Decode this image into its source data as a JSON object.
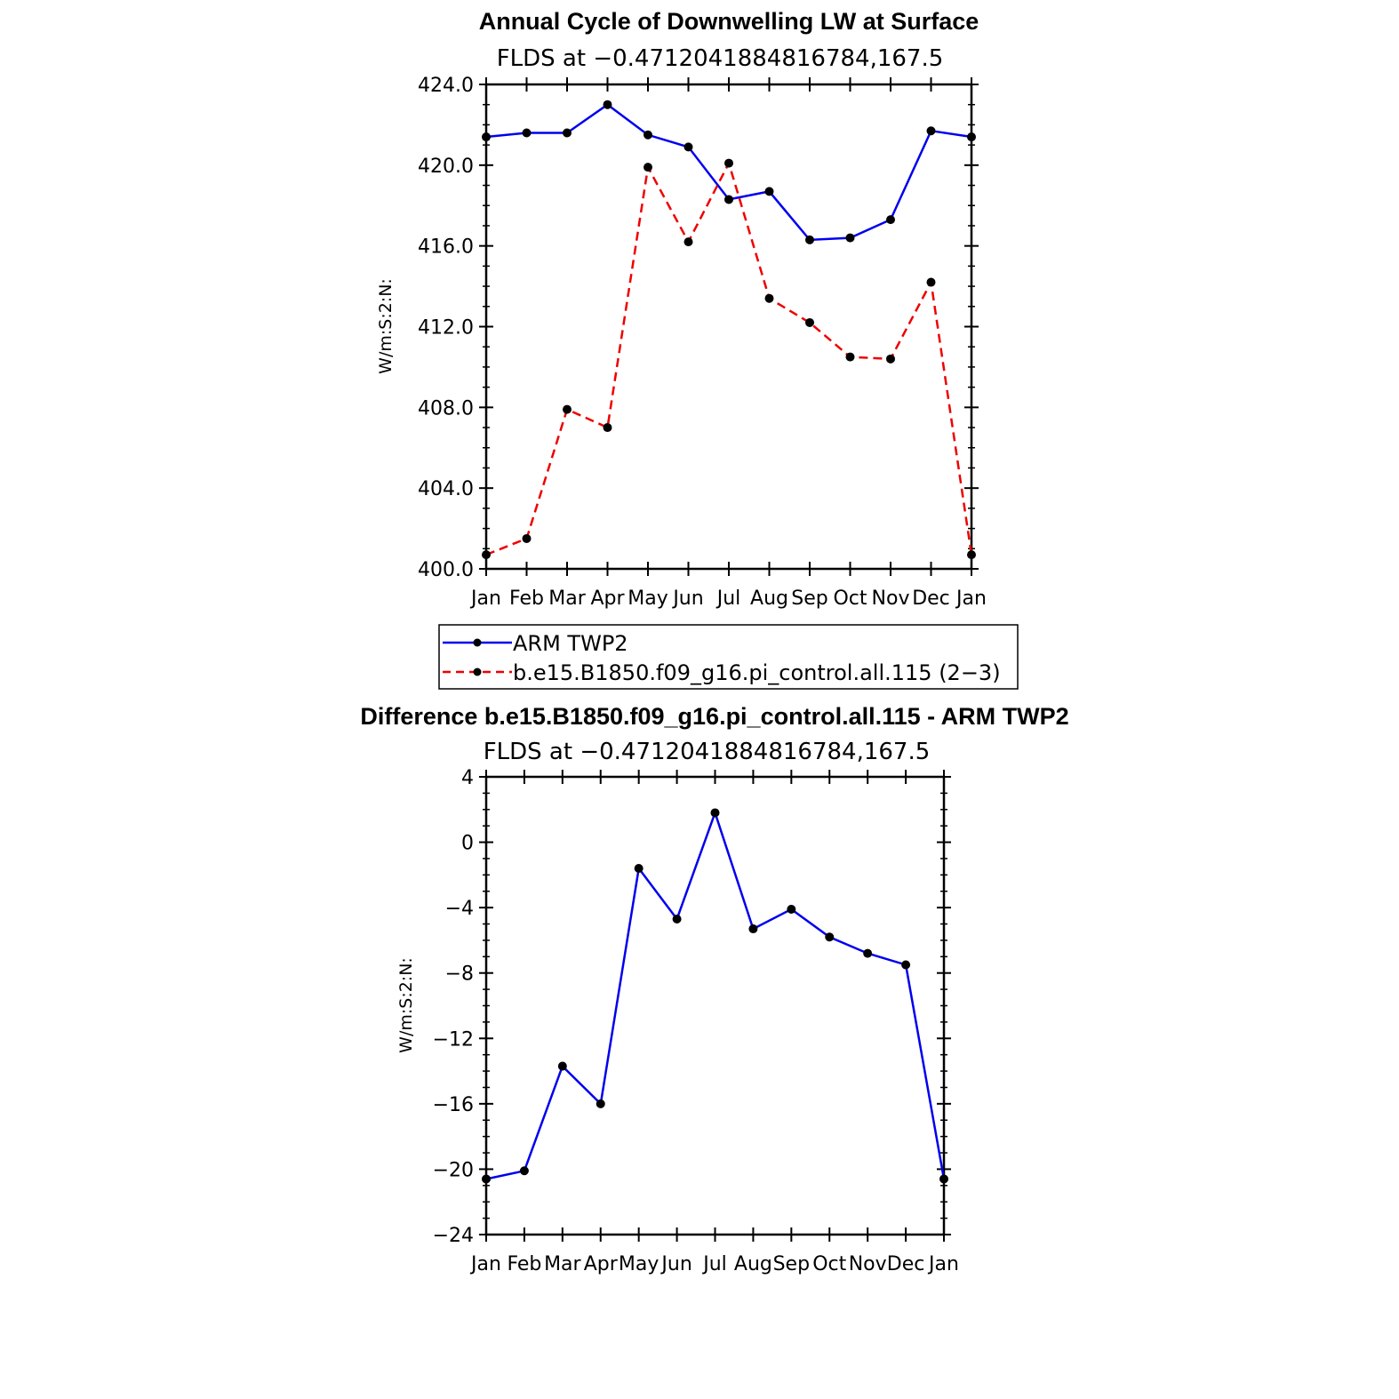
{
  "colors": {
    "obs": "#0000ee",
    "model": "#ee0000",
    "diff": "#0000ee",
    "marker": "#000000"
  },
  "chart_data": [
    {
      "type": "line",
      "title": "Annual Cycle of Downwelling LW at Surface",
      "subtitle": "FLDS at −0.4712041884816784,167.5",
      "ylabel": "W/m:S:2:N:",
      "ylim": [
        400,
        424
      ],
      "yticks": [
        "400.0",
        "404.0",
        "408.0",
        "412.0",
        "416.0",
        "420.0",
        "424.0"
      ],
      "ytick_values": [
        400,
        404,
        408,
        412,
        416,
        420,
        424
      ],
      "categories": [
        "Jan",
        "Feb",
        "Mar",
        "Apr",
        "May",
        "Jun",
        "Jul",
        "Aug",
        "Sep",
        "Oct",
        "Nov",
        "Dec",
        "Jan"
      ],
      "series": [
        {
          "name": "ARM TWP2",
          "style": "solid",
          "color": "#0000ee",
          "values": [
            421.4,
            421.6,
            421.6,
            423.0,
            421.5,
            420.9,
            418.3,
            418.7,
            416.3,
            416.4,
            417.3,
            421.7,
            421.4
          ]
        },
        {
          "name": "b.e15.B1850.f09_g16.pi_control.all.115 (2−3)",
          "style": "dashed",
          "color": "#ee0000",
          "values": [
            400.7,
            401.5,
            407.9,
            407.0,
            419.9,
            416.2,
            420.1,
            413.4,
            412.2,
            410.5,
            410.4,
            414.2,
            400.7
          ]
        }
      ],
      "legend": "below"
    },
    {
      "type": "line",
      "title": "Difference b.e15.B1850.f09_g16.pi_control.all.115 - ARM TWP2",
      "subtitle": "FLDS at −0.4712041884816784,167.5",
      "ylabel": "W/m:S:2:N:",
      "ylim": [
        -24,
        4
      ],
      "yticks": [
        "−24",
        "−20",
        "−16",
        "−12",
        "−8",
        "−4",
        "0",
        "4"
      ],
      "ytick_values": [
        -24,
        -20,
        -16,
        -12,
        -8,
        -4,
        0,
        4
      ],
      "categories": [
        "Jan",
        "Feb",
        "Mar",
        "Apr",
        "May",
        "Jun",
        "Jul",
        "Aug",
        "Sep",
        "Oct",
        "Nov",
        "Dec",
        "Jan"
      ],
      "series": [
        {
          "style": "solid",
          "color": "#0000ee",
          "values": [
            -20.6,
            -20.1,
            -13.7,
            -16.0,
            -1.6,
            -4.7,
            1.8,
            -5.3,
            -4.1,
            -5.8,
            -6.8,
            -7.5,
            -20.6
          ]
        }
      ]
    }
  ]
}
